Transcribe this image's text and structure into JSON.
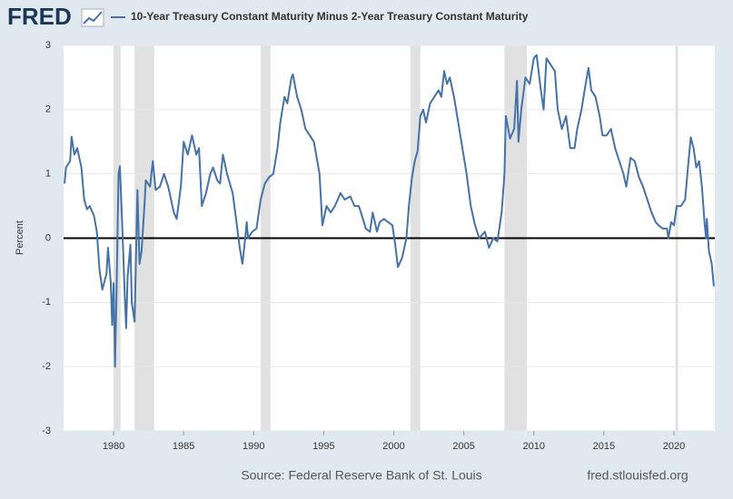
{
  "logo": "FRED",
  "chart_data": {
    "type": "line",
    "title": "10-Year Treasury Constant Maturity Minus 2-Year Treasury Constant Maturity",
    "y_label": "Percent",
    "source": "Source: Federal Reserve Bank of St. Louis",
    "site": "fred.stlouisfed.org",
    "xlim": [
      1976.43,
      2022.92
    ],
    "xticks": [
      1980,
      1985,
      1990,
      1995,
      2000,
      2005,
      2010,
      2015,
      2020
    ],
    "ylim": [
      -3,
      3
    ],
    "yticks": [
      -3,
      -2,
      -1,
      0,
      1,
      2,
      3
    ],
    "grid": true,
    "recessions": [
      [
        1980.0,
        1980.5
      ],
      [
        1981.5,
        1982.9
      ],
      [
        1990.5,
        1991.2
      ],
      [
        2001.2,
        2001.9
      ],
      [
        2007.9,
        2009.5
      ],
      [
        2020.1,
        2020.3
      ]
    ],
    "x": [
      1976.5,
      1976.6,
      1976.9,
      1977.0,
      1977.2,
      1977.4,
      1977.7,
      1977.9,
      1978.1,
      1978.3,
      1978.6,
      1978.8,
      1979.0,
      1979.2,
      1979.5,
      1979.6,
      1979.8,
      1979.9,
      1980.0,
      1980.1,
      1980.2,
      1980.35,
      1980.45,
      1980.6,
      1980.8,
      1980.9,
      1981.0,
      1981.2,
      1981.3,
      1981.5,
      1981.7,
      1981.85,
      1982.0,
      1982.2,
      1982.3,
      1982.6,
      1982.8,
      1983.0,
      1983.3,
      1983.6,
      1983.9,
      1984.3,
      1984.5,
      1984.8,
      1985.0,
      1985.3,
      1985.6,
      1985.9,
      1986.1,
      1986.3,
      1986.6,
      1986.9,
      1987.1,
      1987.4,
      1987.6,
      1987.8,
      1988.1,
      1988.5,
      1988.8,
      1989.0,
      1989.2,
      1989.4,
      1989.5,
      1989.6,
      1989.9,
      1990.2,
      1990.5,
      1990.8,
      1991.1,
      1991.4,
      1991.7,
      1991.9,
      1992.2,
      1992.4,
      1992.7,
      1992.8,
      1993.1,
      1993.4,
      1993.7,
      1994.0,
      1994.3,
      1994.7,
      1994.9,
      1995.2,
      1995.5,
      1995.8,
      1996.2,
      1996.5,
      1996.9,
      1997.2,
      1997.5,
      1997.8,
      1998.0,
      1998.3,
      1998.5,
      1998.8,
      1999.0,
      1999.3,
      1999.6,
      1999.9,
      2000.1,
      2000.3,
      2000.6,
      2000.9,
      2001.1,
      2001.3,
      2001.5,
      2001.7,
      2001.9,
      2002.1,
      2002.3,
      2002.6,
      2002.9,
      2003.2,
      2003.4,
      2003.6,
      2003.8,
      2004.0,
      2004.3,
      2004.6,
      2004.9,
      2005.2,
      2005.5,
      2005.8,
      2006.1,
      2006.5,
      2006.8,
      2007.1,
      2007.4,
      2007.7,
      2007.9,
      2008.0,
      2008.3,
      2008.6,
      2008.8,
      2008.9,
      2009.1,
      2009.4,
      2009.7,
      2010.0,
      2010.2,
      2010.5,
      2010.7,
      2010.9,
      2011.2,
      2011.5,
      2011.7,
      2012.0,
      2012.3,
      2012.6,
      2012.9,
      2013.1,
      2013.4,
      2013.7,
      2013.9,
      2014.1,
      2014.4,
      2014.7,
      2014.9,
      2015.2,
      2015.5,
      2015.8,
      2016.1,
      2016.4,
      2016.6,
      2016.9,
      2017.2,
      2017.5,
      2017.8,
      2018.1,
      2018.4,
      2018.7,
      2018.9,
      2019.2,
      2019.5,
      2019.6,
      2019.8,
      2020.0,
      2020.2,
      2020.5,
      2020.8,
      2021.0,
      2021.2,
      2021.4,
      2021.6,
      2021.8,
      2022.0,
      2022.2,
      2022.3,
      2022.35,
      2022.5,
      2022.7,
      2022.85
    ],
    "series": [
      {
        "name": "10-Year Treasury Constant Maturity Minus 2-Year Treasury Constant Maturity",
        "color": "#4572a7",
        "values": [
          0.85,
          1.1,
          1.2,
          1.58,
          1.3,
          1.4,
          1.1,
          0.6,
          0.45,
          0.5,
          0.35,
          0.1,
          -0.5,
          -0.8,
          -0.55,
          -0.15,
          -0.7,
          -1.35,
          -0.7,
          -2.0,
          -1.0,
          1.0,
          1.12,
          0.3,
          -0.9,
          -1.4,
          -0.6,
          -0.1,
          -1.0,
          -1.3,
          0.75,
          -0.4,
          -0.2,
          0.5,
          0.9,
          0.8,
          1.2,
          0.75,
          0.8,
          1.0,
          0.8,
          0.4,
          0.3,
          0.8,
          1.5,
          1.3,
          1.6,
          1.3,
          1.4,
          0.5,
          0.7,
          1.0,
          1.1,
          0.9,
          0.85,
          1.3,
          1.0,
          0.7,
          0.2,
          -0.15,
          -0.4,
          0.0,
          0.25,
          0.0,
          0.1,
          0.15,
          0.6,
          0.85,
          0.95,
          1.0,
          1.4,
          1.8,
          2.2,
          2.1,
          2.5,
          2.55,
          2.2,
          2.0,
          1.7,
          1.6,
          1.5,
          1.0,
          0.2,
          0.5,
          0.4,
          0.5,
          0.7,
          0.6,
          0.65,
          0.5,
          0.5,
          0.3,
          0.15,
          0.1,
          0.4,
          0.1,
          0.25,
          0.3,
          0.25,
          0.2,
          -0.1,
          -0.45,
          -0.3,
          0.0,
          0.55,
          0.95,
          1.2,
          1.35,
          1.9,
          2.0,
          1.8,
          2.1,
          2.2,
          2.3,
          2.2,
          2.6,
          2.4,
          2.5,
          2.2,
          1.8,
          1.4,
          1.0,
          0.5,
          0.2,
          0.0,
          0.1,
          -0.15,
          0.0,
          -0.05,
          0.4,
          1.0,
          1.9,
          1.55,
          1.7,
          2.45,
          1.5,
          2.0,
          2.5,
          2.4,
          2.8,
          2.85,
          2.3,
          2.0,
          2.8,
          2.7,
          2.6,
          2.0,
          1.7,
          1.9,
          1.4,
          1.4,
          1.7,
          2.0,
          2.4,
          2.65,
          2.3,
          2.2,
          1.9,
          1.6,
          1.6,
          1.7,
          1.4,
          1.2,
          1.0,
          0.8,
          1.25,
          1.2,
          0.95,
          0.8,
          0.6,
          0.4,
          0.25,
          0.2,
          0.15,
          0.15,
          0.0,
          0.25,
          0.2,
          0.5,
          0.5,
          0.6,
          1.1,
          1.57,
          1.4,
          1.1,
          1.2,
          0.8,
          0.2,
          0.0,
          0.3,
          -0.2,
          -0.4,
          -0.75
        ]
      }
    ]
  }
}
